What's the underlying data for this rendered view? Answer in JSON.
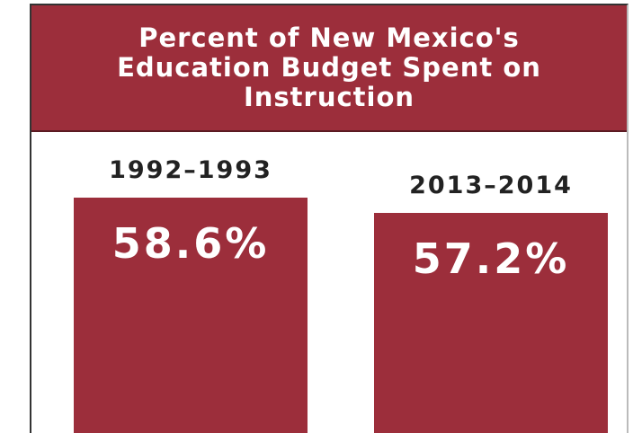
{
  "chart_data": {
    "type": "bar",
    "title": "Percent of New Mexico's Education Budget Spent on Instruction",
    "categories": [
      "1992–1993",
      "2013–2014"
    ],
    "values": [
      58.6,
      57.2
    ],
    "value_labels": [
      "58.6%",
      "57.2%"
    ],
    "color": "#9c2e3b"
  }
}
